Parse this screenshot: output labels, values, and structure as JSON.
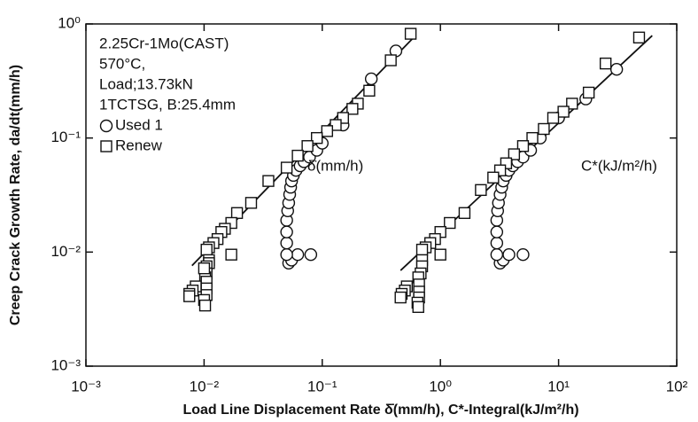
{
  "chart_data": {
    "type": "scatter",
    "xlabel": "Load Line Displacement Rate  δ̇(mm/h), C*-Integral(kJ/m²/h)",
    "ylabel": "Creep Crack Growth Rate, da/dt(mm/h)",
    "xscale": "log",
    "yscale": "log",
    "xlim": [
      0.001,
      100
    ],
    "ylim": [
      0.001,
      1
    ],
    "xticks": [
      {
        "value": 0.001,
        "label": "10⁻³"
      },
      {
        "value": 0.01,
        "label": "10⁻²"
      },
      {
        "value": 0.1,
        "label": "10⁻¹"
      },
      {
        "value": 1,
        "label": "10⁰"
      },
      {
        "value": 10,
        "label": "10¹"
      },
      {
        "value": 100,
        "label": "10²"
      }
    ],
    "yticks": [
      {
        "value": 1,
        "label": "10⁰"
      },
      {
        "value": 0.1,
        "label": "10⁻¹"
      },
      {
        "value": 0.01,
        "label": "10⁻²"
      },
      {
        "value": 0.001,
        "label": "10⁻³"
      }
    ],
    "info": [
      "2.25Cr-1Mo(CAST)",
      "570°C,",
      "Load;13.73kN",
      "1TCTSG, B:25.4mm"
    ],
    "annotations": [
      "δ̇(mm/h)",
      "C*(kJ/m²/h)"
    ],
    "series": [
      {
        "name": "Used 1",
        "marker": "circle",
        "color": "#111111",
        "x": [
          0.052,
          0.055,
          0.062,
          0.08,
          0.05,
          0.05,
          0.05,
          0.05,
          0.051,
          0.052,
          0.053,
          0.054,
          0.055,
          0.057,
          0.06,
          0.065,
          0.07,
          0.078,
          0.09,
          0.1,
          0.15,
          0.26,
          0.42,
          3.2,
          3.4,
          3.8,
          5,
          3.0,
          3.0,
          3.0,
          3.0,
          3.05,
          3.1,
          3.2,
          3.3,
          3.4,
          3.6,
          3.8,
          4.1,
          4.5,
          5,
          5.8,
          7,
          10,
          17,
          31
        ],
        "y": [
          0.008,
          0.0085,
          0.0095,
          0.0095,
          0.0095,
          0.012,
          0.015,
          0.019,
          0.023,
          0.027,
          0.032,
          0.037,
          0.042,
          0.047,
          0.052,
          0.057,
          0.062,
          0.068,
          0.078,
          0.09,
          0.13,
          0.33,
          0.58,
          0.008,
          0.0085,
          0.0095,
          0.0095,
          0.0095,
          0.012,
          0.015,
          0.019,
          0.023,
          0.027,
          0.032,
          0.037,
          0.042,
          0.047,
          0.052,
          0.057,
          0.062,
          0.068,
          0.078,
          0.1,
          0.15,
          0.22,
          0.4
        ]
      },
      {
        "name": "Renew",
        "marker": "square",
        "color": "#111111",
        "x": [
          0.56,
          0.38,
          0.25,
          0.2,
          0.18,
          0.15,
          0.13,
          0.11,
          0.09,
          0.075,
          0.062,
          0.05,
          0.035,
          0.025,
          0.019,
          0.017,
          0.015,
          0.014,
          0.013,
          0.012,
          0.011,
          0.0105,
          0.017,
          0.011,
          0.011,
          0.0105,
          0.0105,
          0.0102,
          0.0105,
          0.0105,
          0.0105,
          0.01,
          0.0102,
          0.0085,
          0.008,
          0.0075,
          0.0075,
          0.01,
          48,
          25,
          18,
          13,
          11,
          9,
          7.5,
          6,
          5,
          4.2,
          3.6,
          3.2,
          2.8,
          2.2,
          1.6,
          1.2,
          1.0,
          0.9,
          0.82,
          0.75,
          0.7,
          1.0,
          0.7,
          0.7,
          0.68,
          0.65,
          0.66,
          0.66,
          0.66,
          0.64,
          0.65,
          0.52,
          0.5,
          0.47,
          0.46
        ],
        "y": [
          0.82,
          0.48,
          0.26,
          0.2,
          0.18,
          0.15,
          0.13,
          0.115,
          0.1,
          0.085,
          0.07,
          0.055,
          0.042,
          0.027,
          0.022,
          0.018,
          0.016,
          0.015,
          0.013,
          0.012,
          0.011,
          0.0105,
          0.0095,
          0.0085,
          0.008,
          0.0075,
          0.0065,
          0.006,
          0.0055,
          0.0048,
          0.0042,
          0.0038,
          0.0034,
          0.005,
          0.0046,
          0.0043,
          0.0041,
          0.0072,
          0.76,
          0.45,
          0.25,
          0.2,
          0.17,
          0.15,
          0.12,
          0.1,
          0.085,
          0.072,
          0.06,
          0.052,
          0.045,
          0.035,
          0.022,
          0.018,
          0.015,
          0.013,
          0.012,
          0.011,
          0.0105,
          0.0095,
          0.0085,
          0.0075,
          0.0065,
          0.006,
          0.0052,
          0.0045,
          0.004,
          0.0036,
          0.0033,
          0.005,
          0.0046,
          0.0043,
          0.004
        ]
      }
    ],
    "fits": [
      {
        "x": [
          0.0079,
          0.6
        ],
        "y": [
          0.0076,
          0.77
        ]
      },
      {
        "x": [
          0.46,
          62
        ],
        "y": [
          0.0069,
          0.79
        ]
      }
    ]
  }
}
